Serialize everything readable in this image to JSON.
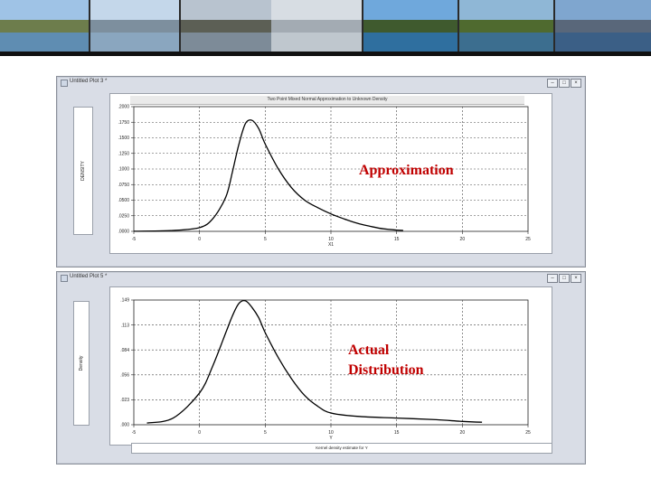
{
  "banner": {
    "photos": [
      {
        "name": "hilltop-castle-photo",
        "sky": "#9fc3e6",
        "hill": "#6d7d4c",
        "water": "#5f8db2"
      },
      {
        "name": "lake-city-photo",
        "sky": "#c4d7ea",
        "hill": "#7d8f9e",
        "water": "#8aa6bf"
      },
      {
        "name": "lakeside-promenade-photo",
        "sky": "#b8c3cf",
        "hill": "#5c5f55",
        "water": "#7d8b98"
      },
      {
        "name": "misty-lake-photo",
        "sky": "#d7dde3",
        "hill": "#a3abb3",
        "water": "#bfc7ce"
      },
      {
        "name": "lake-island-photo",
        "sky": "#6fa8dc",
        "hill": "#3f5a2e",
        "water": "#2f6f9f"
      },
      {
        "name": "aerial-bay-photo",
        "sky": "#8fb7d6",
        "hill": "#4f6a2f",
        "water": "#3c6e8f"
      },
      {
        "name": "mountain-lake-photo",
        "sky": "#7fa6cf",
        "hill": "#59677a",
        "water": "#3b5f86"
      },
      {
        "name": "flower-promenade-photo",
        "sky": "#5d9bd8",
        "hill": "#3f7a2b",
        "water": "#4a89b8"
      }
    ],
    "last_photo": {
      "name": "tree-promenade-photo",
      "sky": "#5d9bd8",
      "hill": "#3f7a2b",
      "water": "#4a89b8"
    }
  },
  "window_top": {
    "title": "Untitled Plot 3 *",
    "buttons": {
      "minimize": "–",
      "maximize": "□",
      "close": "×"
    },
    "y_axis_label": "DENSITY",
    "plot_title": "Two Point Mixed Normal Approximation to Unknown Density",
    "x_axis_label": "X1"
  },
  "window_bottom": {
    "title": "Untitled Plot 5 *",
    "buttons": {
      "minimize": "–",
      "maximize": "□",
      "close": "×"
    },
    "y_axis_label": "Density",
    "x_axis_label": "Y",
    "footer": "Kernel density estimate for       Y"
  },
  "annotations": {
    "top": "Approximation",
    "bottom_line1": "Actual",
    "bottom_line2": "Distribution"
  },
  "chart_data": [
    {
      "type": "line",
      "title": "Two Point Mixed Normal Approximation to Unknown Density",
      "ylabel": "DENSITY",
      "xlabel": "X1",
      "xlim": [
        -5,
        25
      ],
      "ylim": [
        0,
        0.2
      ],
      "x_ticks": [
        "-5",
        "0",
        "5",
        "10",
        "15",
        "20",
        "25"
      ],
      "y_ticks": [
        ".0000",
        ".0250",
        ".0500",
        ".0750",
        ".1000",
        ".1250",
        ".1500",
        ".1750",
        ".2000"
      ],
      "grid": true,
      "x": [
        -5,
        -2,
        0,
        1,
        2,
        2.5,
        3,
        3.5,
        4,
        4.5,
        5,
        6,
        7,
        8,
        9,
        10,
        11,
        12,
        13,
        14,
        15,
        15.5
      ],
      "y": [
        0.0001,
        0.0015,
        0.006,
        0.02,
        0.055,
        0.095,
        0.14,
        0.173,
        0.178,
        0.165,
        0.14,
        0.1,
        0.07,
        0.05,
        0.038,
        0.028,
        0.02,
        0.013,
        0.008,
        0.004,
        0.002,
        0.0015
      ]
    },
    {
      "type": "line",
      "title": "",
      "ylabel": "Density",
      "xlabel": "Y",
      "xlim": [
        -5,
        25
      ],
      "ylim": [
        0,
        0.149
      ],
      "x_ticks": [
        "-5",
        "0",
        "5",
        "10",
        "15",
        "20",
        "25"
      ],
      "y_ticks": [
        ".000",
        ".023",
        ".056",
        ".084",
        ".113",
        ".149"
      ],
      "grid": true,
      "x": [
        -4,
        -2,
        0,
        1,
        2,
        2.5,
        3,
        3.5,
        4,
        4.5,
        5,
        6,
        7,
        8,
        9,
        10,
        12,
        15,
        18,
        20,
        21.5
      ],
      "y": [
        0.002,
        0.008,
        0.038,
        0.07,
        0.11,
        0.13,
        0.145,
        0.148,
        0.14,
        0.128,
        0.11,
        0.08,
        0.055,
        0.035,
        0.022,
        0.014,
        0.01,
        0.008,
        0.006,
        0.004,
        0.003
      ]
    }
  ]
}
